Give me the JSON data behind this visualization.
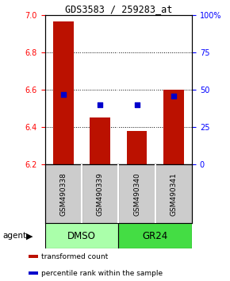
{
  "title": "GDS3583 / 259283_at",
  "categories": [
    "GSM490338",
    "GSM490339",
    "GSM490340",
    "GSM490341"
  ],
  "bar_values": [
    6.97,
    6.45,
    6.38,
    6.6
  ],
  "bar_bottom": 6.2,
  "blue_pct": [
    47,
    40,
    40,
    46
  ],
  "ylim": [
    6.2,
    7.0
  ],
  "yticks_left": [
    6.2,
    6.4,
    6.6,
    6.8,
    7.0
  ],
  "yticks_right": [
    0,
    25,
    50,
    75,
    100
  ],
  "ytick_right_labels": [
    "0",
    "25",
    "50",
    "75",
    "100%"
  ],
  "bar_color": "#bb1100",
  "blue_color": "#0000cc",
  "groups": [
    {
      "label": "DMSO",
      "indices": [
        0,
        1
      ],
      "color": "#aaffaa"
    },
    {
      "label": "GR24",
      "indices": [
        2,
        3
      ],
      "color": "#44dd44"
    }
  ],
  "agent_label": "agent",
  "legend_items": [
    {
      "color": "#bb1100",
      "label": "transformed count"
    },
    {
      "color": "#0000cc",
      "label": "percentile rank within the sample"
    }
  ],
  "sample_box_color": "#cccccc",
  "bar_width": 0.55,
  "figsize": [
    2.9,
    3.54
  ],
  "dpi": 100
}
